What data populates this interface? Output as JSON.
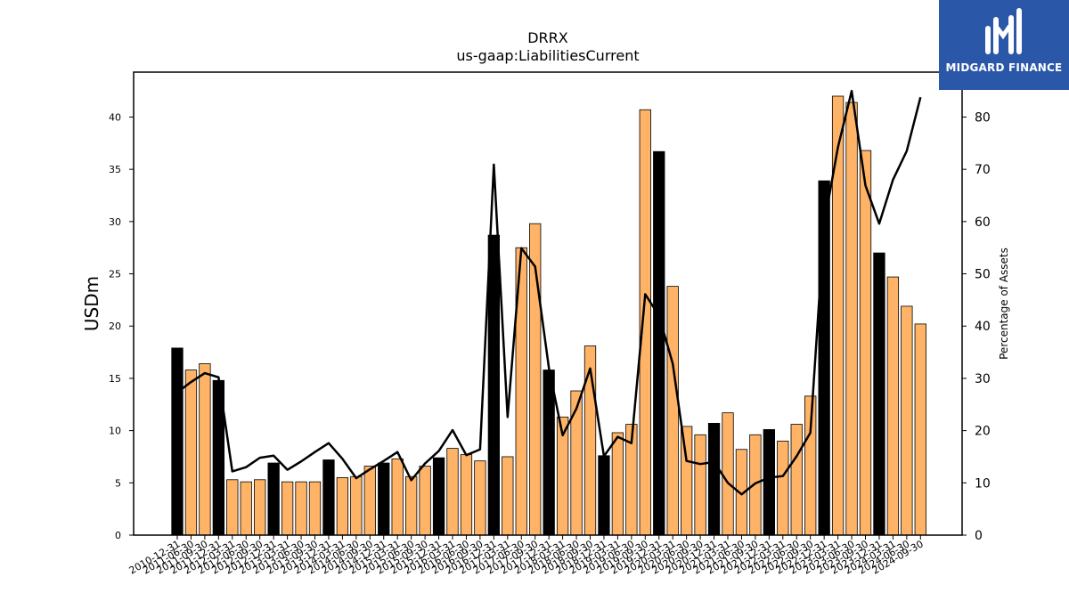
{
  "brand": {
    "name": "MIDGARD FINANCE",
    "color": "#2b57a8"
  },
  "chart_data": {
    "type": "bar",
    "title": "DRRX",
    "subtitle": "us-gaap:LiabilitiesCurrent",
    "ylabel": "USDm",
    "y2label": "Percentage of Assets",
    "ylim": [
      0,
      44.3
    ],
    "y2lim": [
      0,
      88.6
    ],
    "yticks": [
      0,
      5,
      10,
      15,
      20,
      25,
      30,
      35,
      40
    ],
    "y2ticks": [
      0,
      10,
      20,
      30,
      40,
      50,
      60,
      70,
      80
    ],
    "colors": {
      "annual": "#000000",
      "quarterly": "#ffb366",
      "line": "#000000"
    },
    "categories": [
      "2010-12-31",
      "2011-06-30",
      "2011-09-30",
      "2011-12-31",
      "2012-03-31",
      "2012-06-30",
      "2012-09-30",
      "2012-12-31",
      "2013-03-31",
      "2013-06-30",
      "2013-09-30",
      "2013-12-31",
      "2014-03-31",
      "2014-06-30",
      "2014-09-30",
      "2014-12-31",
      "2015-03-31",
      "2015-06-30",
      "2015-09-30",
      "2015-12-31",
      "2016-03-31",
      "2016-06-30",
      "2016-09-30",
      "2016-12-31",
      "2017-03-31",
      "2017-06-30",
      "2017-09-30",
      "2017-12-31",
      "2018-03-31",
      "2018-06-30",
      "2018-09-30",
      "2018-12-31",
      "2019-03-31",
      "2019-06-30",
      "2019-09-30",
      "2019-12-31",
      "2020-03-31",
      "2020-06-30",
      "2020-09-30",
      "2020-12-31",
      "2021-03-31",
      "2021-06-30",
      "2021-09-30",
      "2021-12-31",
      "2022-03-31",
      "2022-06-30",
      "2022-09-30",
      "2022-12-31",
      "2023-03-31",
      "2023-06-30",
      "2023-09-30",
      "2023-12-31",
      "2024-03-31",
      "2024-06-30",
      "2024-09-30"
    ],
    "series": [
      {
        "kind": "bar",
        "values": [
          17.9,
          15.8,
          16.4,
          14.8,
          5.3,
          5.1,
          5.3,
          6.9,
          5.1,
          5.1,
          5.1,
          7.2,
          5.5,
          5.6,
          6.6,
          6.9,
          7.3,
          5.6,
          6.6,
          7.4,
          8.3,
          7.7,
          7.1,
          28.7,
          7.5,
          27.5,
          29.8,
          15.8,
          11.3,
          13.8,
          18.1,
          7.6,
          9.8,
          10.6,
          40.7,
          36.7,
          23.8,
          10.4,
          9.6,
          10.7,
          11.7,
          8.2,
          9.6,
          10.1,
          9.0,
          10.6,
          13.3,
          33.9,
          42.0,
          41.4,
          36.8,
          27.0,
          24.7,
          21.9,
          20.2
        ],
        "annual": [
          true,
          false,
          false,
          true,
          false,
          false,
          false,
          true,
          false,
          false,
          false,
          true,
          false,
          false,
          false,
          true,
          false,
          false,
          false,
          true,
          false,
          false,
          false,
          true,
          false,
          false,
          false,
          true,
          false,
          false,
          false,
          true,
          false,
          false,
          false,
          true,
          false,
          false,
          false,
          true,
          false,
          false,
          false,
          true,
          false,
          false,
          false,
          true,
          false,
          false,
          false,
          true,
          false,
          false,
          false
        ]
      },
      {
        "kind": "line",
        "axis": "right",
        "values": [
          27.3,
          29.3,
          31.0,
          30.2,
          12.2,
          13.0,
          14.8,
          15.2,
          12.5,
          14.1,
          15.9,
          17.6,
          14.6,
          10.9,
          12.6,
          14.2,
          15.9,
          10.5,
          13.7,
          16.1,
          20.1,
          15.3,
          16.4,
          70.9,
          22.6,
          54.9,
          51.4,
          32.0,
          19.1,
          24.2,
          31.9,
          15.1,
          18.8,
          17.6,
          46.1,
          42.0,
          32.8,
          14.2,
          13.6,
          14.0,
          10.0,
          7.8,
          9.9,
          11.0,
          11.3,
          15.1,
          19.6,
          59.5,
          74.2,
          85.0,
          66.9,
          59.6,
          68.0,
          73.5,
          83.8
        ]
      }
    ],
    "legend": "none",
    "grid": false
  }
}
